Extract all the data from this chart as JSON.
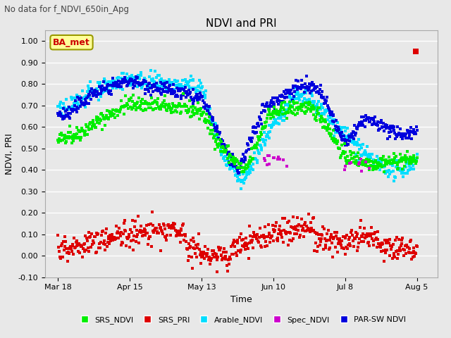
{
  "title": "NDVI and PRI",
  "sup_title": "No data for f_NDVI_650in_Apg",
  "ylabel": "NDVI, PRI",
  "xlabel": "Time",
  "ylim": [
    -0.1,
    1.05
  ],
  "yticks": [
    -0.1,
    0.0,
    0.1,
    0.2,
    0.3,
    0.4,
    0.5,
    0.6,
    0.7,
    0.8,
    0.9,
    1.0
  ],
  "background_color": "#e8e8e8",
  "legend_label": "BA_met",
  "legend_items": [
    "SRS_NDVI",
    "SRS_PRI",
    "Arable_NDVI",
    "Spec_NDVI",
    "PAR-SW NDVI"
  ],
  "legend_colors": [
    "#00ee00",
    "#dd0000",
    "#00ddff",
    "#cc00cc",
    "#0000dd"
  ],
  "colors": {
    "SRS_NDVI": "#00ee00",
    "SRS_PRI": "#dd0000",
    "Arable_NDVI": "#00ddff",
    "Spec_NDVI": "#cc00cc",
    "PAR_SW_NDVI": "#0000dd"
  },
  "date_ticks": [
    "Mar 18",
    "Apr 15",
    "May 13",
    "Jun 10",
    "Jul 8",
    "Aug 5"
  ],
  "date_nums": [
    0,
    28,
    56,
    84,
    112,
    140
  ],
  "figsize": [
    6.4,
    4.8
  ],
  "dpi": 100
}
